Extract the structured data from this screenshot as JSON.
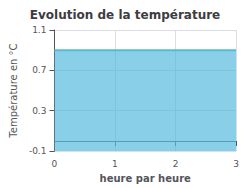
{
  "chart_data": {
    "type": "area",
    "title": "Evolution de la température",
    "xlabel": "heure par heure",
    "ylabel": "Température en °C",
    "x": [
      0,
      3
    ],
    "values": [
      0.9,
      0.9
    ],
    "color": "#55bbdd",
    "xlim": [
      0,
      3
    ],
    "ylim": [
      -0.1,
      1.1
    ],
    "xticks": [
      0,
      1,
      2,
      3
    ],
    "yticks": [
      -0.1,
      0.3,
      0.7,
      1.1
    ],
    "grid": true
  }
}
